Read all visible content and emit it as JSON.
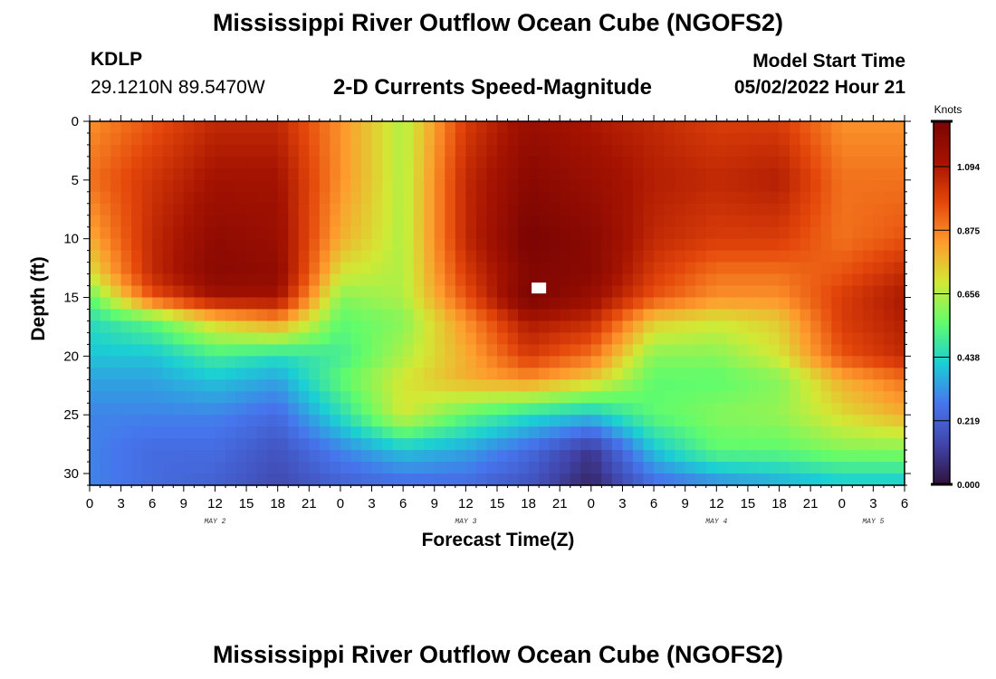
{
  "page": {
    "title": "Mississippi River Outflow Ocean Cube (NGOFS2)",
    "station_id": "KDLP",
    "station_coords": "29.1210N  89.5470W",
    "subtitle": "2-D Currents Speed-Magnitude",
    "model_start_label": "Model Start Time",
    "model_start_value": "05/02/2022 Hour 21",
    "footer_title": "Mississippi River Outflow Ocean Cube (NGOFS2)"
  },
  "chart_data": {
    "type": "heatmap",
    "xlabel": "Forecast Time(Z)",
    "ylabel": "Depth (ft)",
    "x_unit": "hours from May 2 00Z",
    "xlim": [
      0,
      78
    ],
    "ylim": [
      31,
      0
    ],
    "x_tick_labels": [
      "0",
      "3",
      "6",
      "9",
      "12",
      "15",
      "18",
      "21",
      "0",
      "3",
      "6",
      "9",
      "12",
      "15",
      "18",
      "21",
      "0",
      "3",
      "6",
      "9",
      "12",
      "15",
      "18",
      "21",
      "0",
      "3",
      "6"
    ],
    "y_ticks": [
      0,
      5,
      10,
      15,
      20,
      25,
      30
    ],
    "day_labels": [
      {
        "text": "MAY 2",
        "hour": 12
      },
      {
        "text": "MAY 3",
        "hour": 36
      },
      {
        "text": "MAY 4",
        "hour": 60
      },
      {
        "text": "MAY 5",
        "hour": 75
      }
    ],
    "colorbar": {
      "unit": "Knots",
      "min": 0.0,
      "max": 1.25,
      "tick_labels": [
        "0.000",
        "0.219",
        "0.438",
        "0.656",
        "0.875",
        "1.094"
      ],
      "tick_values": [
        0.0,
        0.219,
        0.438,
        0.656,
        0.875,
        1.094
      ],
      "colors": [
        "#30123b",
        "#4145ab",
        "#4675ed",
        "#1bcfd4",
        "#61fc6c",
        "#d2e935",
        "#fe9b2d",
        "#e4460a",
        "#a51301",
        "#7a0403"
      ]
    },
    "field_description": "Approximate speed field (knots) sampled on a grid; hours 0-78, depths 0-31 ft",
    "x_grid": [
      0,
      6,
      12,
      18,
      24,
      30,
      36,
      42,
      48,
      54,
      60,
      66,
      72,
      78
    ],
    "depth_grid": [
      0,
      5,
      10,
      13,
      15,
      17,
      20,
      22,
      25,
      28,
      31
    ],
    "values": [
      [
        0.85,
        0.95,
        1.05,
        1.05,
        0.85,
        0.65,
        1.0,
        1.15,
        1.1,
        1.05,
        1.0,
        1.0,
        0.85,
        0.85
      ],
      [
        0.9,
        1.02,
        1.12,
        1.12,
        0.85,
        0.65,
        1.05,
        1.2,
        1.15,
        1.08,
        1.05,
        1.08,
        0.9,
        0.9
      ],
      [
        0.8,
        1.05,
        1.18,
        1.15,
        0.8,
        0.65,
        1.05,
        1.25,
        1.2,
        1.05,
        1.0,
        1.0,
        0.9,
        0.95
      ],
      [
        0.7,
        1.05,
        1.2,
        1.18,
        0.7,
        0.65,
        1.0,
        1.22,
        1.2,
        1.0,
        0.9,
        0.9,
        0.95,
        1.05
      ],
      [
        0.55,
        0.95,
        1.12,
        1.12,
        0.6,
        0.65,
        0.95,
        1.25,
        1.15,
        0.95,
        0.85,
        0.85,
        1.0,
        1.1
      ],
      [
        0.45,
        0.55,
        0.75,
        0.85,
        0.55,
        0.6,
        0.85,
        1.1,
        1.05,
        0.75,
        0.7,
        0.75,
        1.0,
        1.08
      ],
      [
        0.4,
        0.4,
        0.5,
        0.45,
        0.5,
        0.65,
        0.8,
        1.0,
        0.9,
        0.6,
        0.6,
        0.7,
        0.95,
        1.05
      ],
      [
        0.35,
        0.35,
        0.4,
        0.35,
        0.55,
        0.7,
        0.8,
        0.85,
        0.75,
        0.55,
        0.55,
        0.6,
        0.8,
        0.9
      ],
      [
        0.3,
        0.3,
        0.3,
        0.25,
        0.45,
        0.7,
        0.55,
        0.45,
        0.4,
        0.55,
        0.6,
        0.62,
        0.72,
        0.8
      ],
      [
        0.3,
        0.25,
        0.25,
        0.18,
        0.3,
        0.4,
        0.35,
        0.25,
        0.1,
        0.4,
        0.55,
        0.55,
        0.6,
        0.6
      ],
      [
        0.3,
        0.25,
        0.22,
        0.15,
        0.22,
        0.25,
        0.25,
        0.18,
        0.05,
        0.25,
        0.3,
        0.35,
        0.4,
        0.4
      ]
    ],
    "marker": {
      "hour": 43,
      "depth": 14.2
    }
  }
}
